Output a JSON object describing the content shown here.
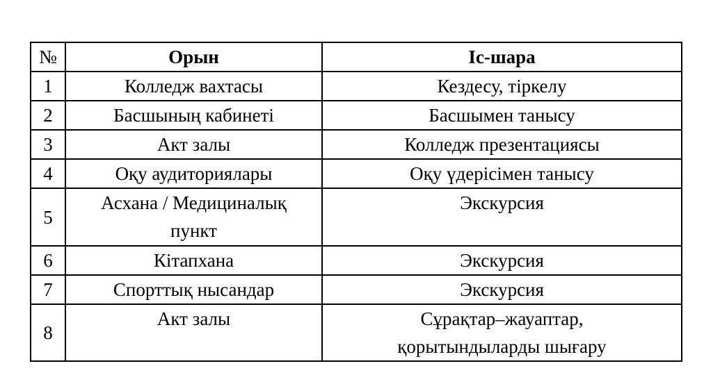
{
  "colors": {
    "background": "#ffffff",
    "text": "#000000",
    "border": "#000000"
  },
  "table": {
    "headers": {
      "num": "№",
      "place": "Орын",
      "event": "Іс-шара"
    },
    "rows": [
      {
        "num": "1",
        "place": "Колледж вахтасы",
        "event": "Кездесу, тіркелу"
      },
      {
        "num": "2",
        "place": "Басшының кабинеті",
        "event": "Басшымен танысу"
      },
      {
        "num": "3",
        "place": "Акт залы",
        "event": "Колледж презентациясы"
      },
      {
        "num": "4",
        "place": "Оқу аудиториялары",
        "event": "Оқу үдерісімен танысу"
      },
      {
        "num": "5",
        "place": "Асхана / Медициналық\nпункт",
        "event": "Экскурсия"
      },
      {
        "num": "6",
        "place": "Кітапхана",
        "event": "Экскурсия"
      },
      {
        "num": "7",
        "place": "Спорттық нысандар",
        "event": "Экскурсия"
      },
      {
        "num": "8",
        "place": "Акт залы",
        "event": "Сұрақтар–жауаптар,\nқорытындыларды шығару"
      }
    ]
  }
}
